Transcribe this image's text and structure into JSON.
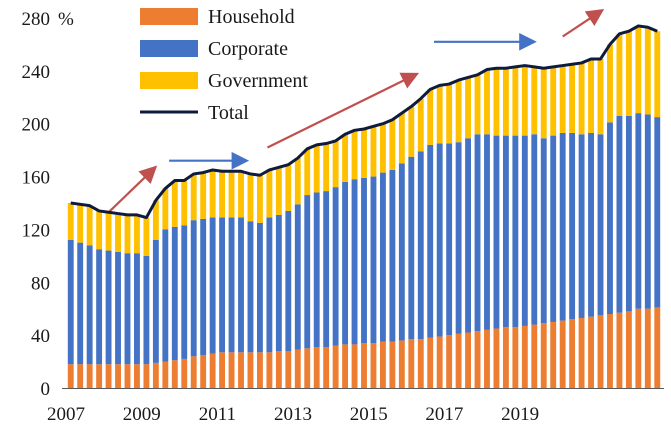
{
  "chart_data": {
    "type": "bar",
    "stacked": true,
    "y_unit": "%",
    "ylim": [
      0,
      280
    ],
    "y_ticks": [
      0,
      40,
      80,
      120,
      160,
      200,
      240,
      280
    ],
    "x_tick_labels": [
      "2007",
      "2009",
      "2011",
      "2013",
      "2015",
      "2017",
      "2019"
    ],
    "x_start": 2007.0,
    "x_step": 0.25,
    "grid": false,
    "legend_position": "top-center",
    "series": [
      {
        "name": "Household",
        "color": "#ED7D31",
        "values": [
          18,
          18,
          18,
          18,
          18,
          18,
          18,
          18,
          18,
          19,
          20,
          21,
          22,
          24,
          25,
          26,
          27,
          27,
          27,
          27,
          27,
          27,
          28,
          28,
          29,
          30,
          31,
          31,
          32,
          33,
          33,
          34,
          34,
          35,
          35,
          36,
          37,
          37,
          38,
          39,
          40,
          41,
          42,
          43,
          44,
          45,
          46,
          46,
          47,
          48,
          49,
          50,
          51,
          52,
          53,
          54,
          55,
          56,
          57,
          58,
          60,
          60,
          61
        ]
      },
      {
        "name": "Corporate",
        "color": "#4472C4",
        "values": [
          94,
          92,
          90,
          87,
          86,
          85,
          84,
          84,
          82,
          93,
          100,
          101,
          101,
          103,
          103,
          103,
          102,
          102,
          102,
          99,
          98,
          102,
          103,
          106,
          110,
          116,
          117,
          118,
          120,
          123,
          125,
          125,
          126,
          128,
          130,
          134,
          138,
          142,
          146,
          146,
          145,
          145,
          147,
          149,
          148,
          146,
          145,
          145,
          144,
          144,
          140,
          141,
          142,
          141,
          139,
          139,
          137,
          145,
          149,
          148,
          148,
          147,
          144
        ]
      },
      {
        "name": "Government",
        "color": "#FFC000",
        "values": [
          28,
          29,
          30,
          29,
          29,
          29,
          29,
          29,
          29,
          30,
          31,
          35,
          34,
          35,
          35,
          36,
          35,
          35,
          35,
          36,
          36,
          36,
          36,
          35,
          35,
          35,
          36,
          36,
          36,
          36,
          37,
          37,
          38,
          37,
          38,
          38,
          38,
          40,
          42,
          44,
          45,
          47,
          46,
          45,
          49,
          51,
          51,
          52,
          53,
          51,
          53,
          52,
          51,
          52,
          54,
          56,
          57,
          59,
          62,
          64,
          66,
          66,
          65
        ]
      }
    ],
    "total": {
      "name": "Total",
      "color": "#0F1B3D",
      "values": [
        140,
        139,
        138,
        134,
        133,
        132,
        131,
        131,
        129,
        142,
        151,
        157,
        157,
        162,
        163,
        165,
        164,
        164,
        164,
        162,
        161,
        165,
        167,
        169,
        174,
        181,
        184,
        185,
        187,
        192,
        195,
        196,
        198,
        200,
        203,
        208,
        213,
        219,
        226,
        229,
        230,
        233,
        235,
        237,
        241,
        242,
        242,
        243,
        244,
        243,
        242,
        243,
        244,
        245,
        246,
        249,
        249,
        260,
        268,
        270,
        274,
        273,
        270
      ]
    },
    "annotations": [
      {
        "type": "arrow",
        "direction": "up",
        "color": "#C0504D",
        "from": [
          2008.0,
          133
        ],
        "to": [
          2009.2,
          166
        ]
      },
      {
        "type": "arrow",
        "direction": "flat",
        "color": "#4472C4",
        "from": [
          2009.6,
          172
        ],
        "to": [
          2011.6,
          172
        ]
      },
      {
        "type": "arrow",
        "direction": "up",
        "color": "#C0504D",
        "from": [
          2012.2,
          182
        ],
        "to": [
          2016.1,
          237
        ]
      },
      {
        "type": "arrow",
        "direction": "flat",
        "color": "#4472C4",
        "from": [
          2016.6,
          262
        ],
        "to": [
          2019.2,
          262
        ]
      },
      {
        "type": "arrow",
        "direction": "up",
        "color": "#C0504D",
        "from": [
          2020.0,
          266
        ],
        "to": [
          2021.0,
          285
        ]
      }
    ]
  }
}
